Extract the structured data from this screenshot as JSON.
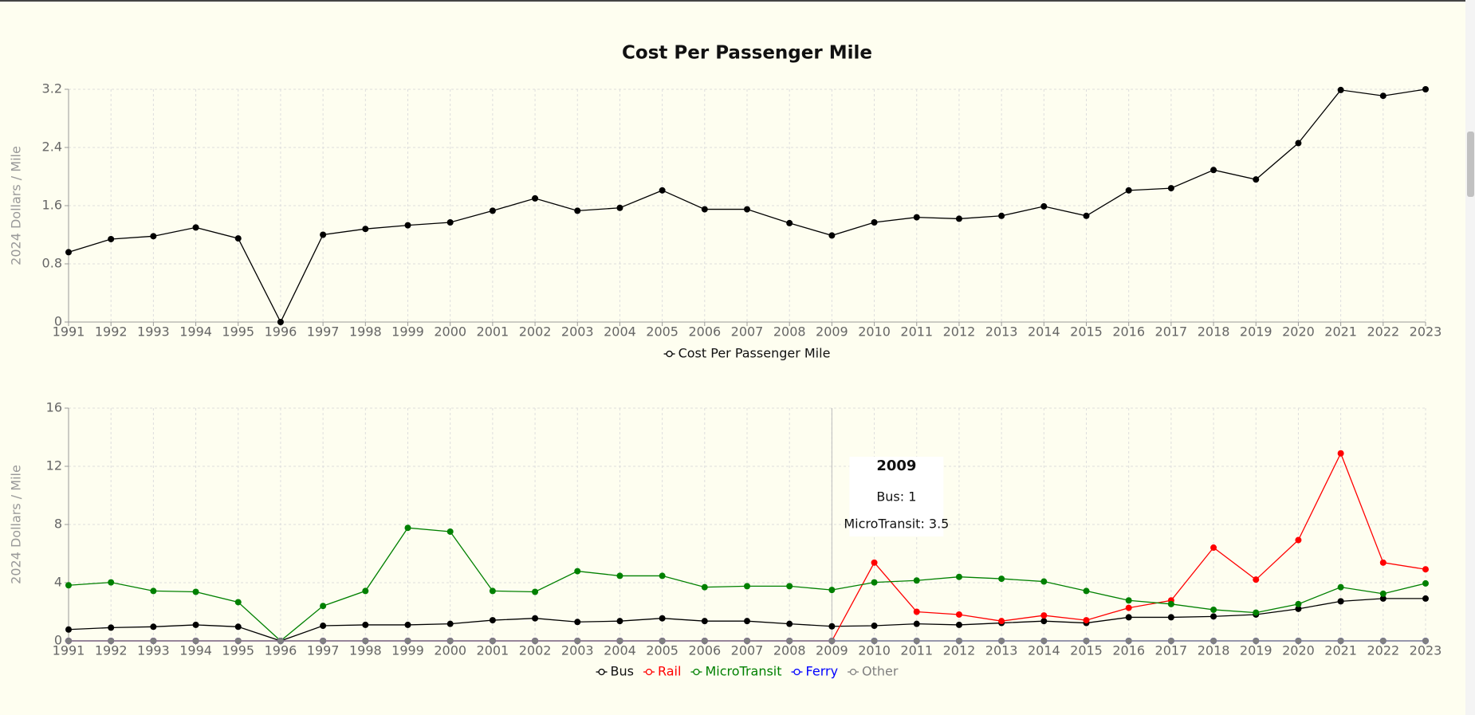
{
  "chart_data": [
    {
      "type": "line",
      "title": "Cost Per Passenger Mile",
      "y_label": "2024 Dollars / Mile",
      "categories": [
        "1991",
        "1992",
        "1993",
        "1994",
        "1995",
        "1996",
        "1997",
        "1998",
        "1999",
        "2000",
        "2001",
        "2002",
        "2003",
        "2004",
        "2005",
        "2006",
        "2007",
        "2008",
        "2009",
        "2010",
        "2011",
        "2012",
        "2013",
        "2014",
        "2015",
        "2016",
        "2017",
        "2018",
        "2019",
        "2020",
        "2021",
        "2022",
        "2023"
      ],
      "series": [
        {
          "name": "Cost Per Passenger Mile",
          "color": "#000000",
          "values": [
            0.96,
            1.14,
            1.18,
            1.3,
            1.15,
            0,
            1.2,
            1.28,
            1.33,
            1.37,
            1.53,
            1.7,
            1.53,
            1.57,
            1.81,
            1.55,
            1.55,
            1.36,
            1.19,
            1.37,
            1.44,
            1.42,
            1.46,
            1.59,
            1.46,
            1.81,
            1.84,
            2.09,
            1.96,
            2.46,
            3.19,
            3.11,
            3.2
          ]
        }
      ],
      "ylim": [
        0,
        3.2
      ],
      "yticks": [
        0,
        0.8,
        1.6,
        2.4,
        3.2
      ],
      "grid": true
    },
    {
      "type": "line",
      "y_label": "2024 Dollars / Mile",
      "categories": [
        "1991",
        "1992",
        "1993",
        "1994",
        "1995",
        "1996",
        "1997",
        "1998",
        "1999",
        "2000",
        "2001",
        "2002",
        "2003",
        "2004",
        "2005",
        "2006",
        "2007",
        "2008",
        "2009",
        "2010",
        "2011",
        "2012",
        "2013",
        "2014",
        "2015",
        "2016",
        "2017",
        "2018",
        "2019",
        "2020",
        "2021",
        "2022",
        "2023"
      ],
      "series": [
        {
          "name": "Bus",
          "color": "#000000",
          "values": [
            0.78,
            0.91,
            0.97,
            1.1,
            0.97,
            0,
            1.04,
            1.1,
            1.1,
            1.17,
            1.42,
            1.55,
            1.3,
            1.36,
            1.55,
            1.36,
            1.36,
            1.17,
            1,
            1.04,
            1.17,
            1.1,
            1.23,
            1.36,
            1.23,
            1.62,
            1.62,
            1.68,
            1.81,
            2.2,
            2.72,
            2.91,
            2.91
          ]
        },
        {
          "name": "Rail",
          "color": "#ff0000",
          "values": [
            0,
            0,
            0,
            0,
            0,
            0,
            0,
            0,
            0,
            0,
            0,
            0,
            0,
            0,
            0,
            0,
            0,
            0,
            0,
            5.38,
            2.0,
            1.81,
            1.36,
            1.75,
            1.42,
            2.27,
            2.78,
            6.41,
            4.21,
            6.93,
            12.89,
            5.38,
            4.92
          ]
        },
        {
          "name": "MicroTransit",
          "color": "#008000",
          "values": [
            3.82,
            4.02,
            3.43,
            3.37,
            2.66,
            0,
            2.4,
            3.43,
            7.77,
            7.51,
            3.43,
            3.37,
            4.79,
            4.47,
            4.47,
            3.69,
            3.76,
            3.76,
            3.5,
            4.02,
            4.15,
            4.4,
            4.27,
            4.08,
            3.43,
            2.78,
            2.53,
            2.14,
            1.94,
            2.53,
            3.69,
            3.24,
            3.95
          ]
        },
        {
          "name": "Ferry",
          "color": "#0000ff",
          "values": [
            0,
            0,
            0,
            0,
            0,
            0,
            0,
            0,
            0,
            0,
            0,
            0,
            0,
            0,
            0,
            0,
            0,
            0,
            0,
            0,
            0,
            0,
            0,
            0,
            0,
            0,
            0,
            0,
            0,
            0,
            0,
            0,
            0
          ]
        },
        {
          "name": "Other",
          "color": "#808080",
          "values": [
            0,
            0,
            0,
            0,
            0,
            0,
            0,
            0,
            0,
            0,
            0,
            0,
            0,
            0,
            0,
            0,
            0,
            0,
            0,
            0,
            0,
            0,
            0,
            0,
            0,
            0,
            0,
            0,
            0,
            0,
            0,
            0,
            0
          ]
        }
      ],
      "ylim": [
        0,
        16
      ],
      "yticks": [
        0,
        4,
        8,
        12,
        16
      ],
      "grid": true,
      "tooltip": {
        "x": "2009",
        "items": [
          "Bus: 1",
          "MicroTransit: 3.5"
        ]
      }
    }
  ]
}
